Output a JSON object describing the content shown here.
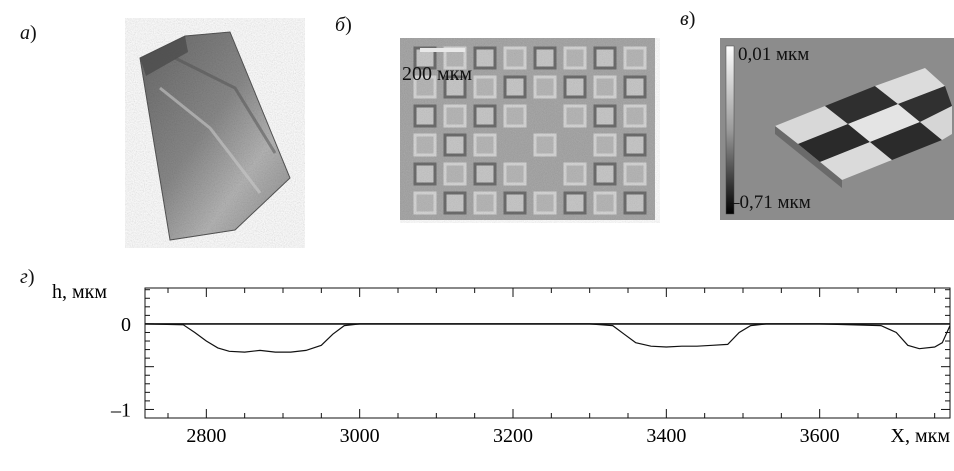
{
  "labels": {
    "a": "а",
    "b": "б",
    "c": "в",
    "d": "г"
  },
  "panel_b": {
    "scale_text": "200 мкм"
  },
  "panel_c": {
    "top_value": "0,01 мкм",
    "bottom_value": "–0,71 мкм"
  },
  "chart_data": {
    "type": "line",
    "title": "",
    "xlabel": "X, мкм",
    "ylabel": "h, мкм",
    "xlim": [
      2720,
      3770
    ],
    "ylim": [
      -1.1,
      0.42
    ],
    "xticks": [
      2800,
      3000,
      3200,
      3400,
      3600
    ],
    "yticks": [
      -1,
      0
    ],
    "ytick_labels": [
      "–1",
      "0"
    ],
    "reference_line": 0,
    "grid": false,
    "series": [
      {
        "x": [
          2720,
          2770,
          2785,
          2800,
          2815,
          2830,
          2850,
          2870,
          2890,
          2910,
          2930,
          2950,
          2965,
          2980,
          3000,
          3100,
          3200,
          3300,
          3330,
          3345,
          3360,
          3380,
          3400,
          3420,
          3440,
          3460,
          3480,
          3495,
          3510,
          3530,
          3600,
          3680,
          3700,
          3715,
          3730,
          3750,
          3760,
          3770
        ],
        "y": [
          0,
          -0.01,
          -0.1,
          -0.2,
          -0.28,
          -0.32,
          -0.33,
          -0.31,
          -0.33,
          -0.33,
          -0.31,
          -0.25,
          -0.12,
          -0.02,
          0,
          0,
          0,
          0,
          -0.02,
          -0.12,
          -0.22,
          -0.26,
          -0.27,
          -0.26,
          -0.26,
          -0.25,
          -0.24,
          -0.1,
          -0.02,
          0,
          0,
          -0.02,
          -0.1,
          -0.25,
          -0.29,
          -0.27,
          -0.22,
          -0.02
        ]
      }
    ]
  }
}
